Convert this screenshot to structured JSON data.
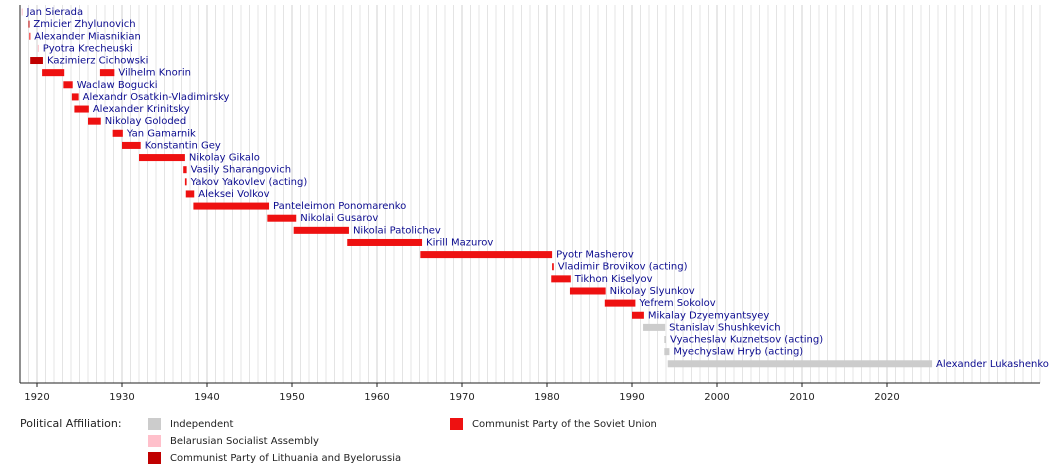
{
  "chart_data": {
    "type": "timeline",
    "xlim": [
      1918,
      2038
    ],
    "xticks": [
      1920,
      1930,
      1940,
      1950,
      1960,
      1970,
      1980,
      1990,
      2000,
      2010,
      2020
    ],
    "grid": true,
    "rows": [
      {
        "label": "Jan Sierada",
        "bars": [
          {
            "start": 1918.2,
            "end": 1918.3,
            "color": "#ffc0cb"
          }
        ]
      },
      {
        "label": "Zmicier Zhylunovich",
        "bars": [
          {
            "start": 1919.0,
            "end": 1919.1,
            "color": "#c00000"
          }
        ]
      },
      {
        "label": "Alexander Miasnikian",
        "bars": [
          {
            "start": 1919.1,
            "end": 1919.2,
            "color": "#ee1111"
          }
        ]
      },
      {
        "label": "Pyotra Krecheuski",
        "bars": [
          {
            "start": 1920.1,
            "end": 1920.2,
            "color": "#ffc0cb"
          }
        ]
      },
      {
        "label": "Kazimierz Cichowski",
        "bars": [
          {
            "start": 1919.2,
            "end": 1920.7,
            "color": "#c00000"
          }
        ]
      },
      {
        "label": "Vilhelm Knorin",
        "bars": [
          {
            "start": 1920.6,
            "end": 1923.2,
            "color": "#ee1111"
          },
          {
            "start": 1927.4,
            "end": 1929.1,
            "color": "#ee1111"
          }
        ]
      },
      {
        "label": "Waclaw Bogucki",
        "bars": [
          {
            "start": 1923.1,
            "end": 1924.2,
            "color": "#ee1111"
          }
        ]
      },
      {
        "label": "Alexandr Osatkin-Vladimirsky",
        "bars": [
          {
            "start": 1924.1,
            "end": 1924.9,
            "color": "#ee1111"
          }
        ]
      },
      {
        "label": "Alexander Krinitsky",
        "bars": [
          {
            "start": 1924.4,
            "end": 1926.1,
            "color": "#ee1111"
          }
        ]
      },
      {
        "label": "Nikolay Goloded",
        "bars": [
          {
            "start": 1926.0,
            "end": 1927.5,
            "color": "#ee1111"
          }
        ]
      },
      {
        "label": "Yan Gamarnik",
        "bars": [
          {
            "start": 1928.9,
            "end": 1930.1,
            "color": "#ee1111"
          }
        ]
      },
      {
        "label": "Konstantin Gey",
        "bars": [
          {
            "start": 1930.0,
            "end": 1932.2,
            "color": "#ee1111"
          }
        ]
      },
      {
        "label": "Nikolay Gikalo",
        "bars": [
          {
            "start": 1932.0,
            "end": 1937.4,
            "color": "#ee1111"
          }
        ]
      },
      {
        "label": "Vasily Sharangovich",
        "bars": [
          {
            "start": 1937.2,
            "end": 1937.6,
            "color": "#ee1111"
          }
        ]
      },
      {
        "label": "Yakov Yakovlev (acting)",
        "bars": [
          {
            "start": 1937.4,
            "end": 1937.6,
            "color": "#ee1111"
          }
        ]
      },
      {
        "label": "Aleksei Volkov",
        "bars": [
          {
            "start": 1937.5,
            "end": 1938.5,
            "color": "#ee1111"
          }
        ]
      },
      {
        "label": "Panteleimon Ponomarenko",
        "bars": [
          {
            "start": 1938.4,
            "end": 1947.3,
            "color": "#ee1111"
          }
        ]
      },
      {
        "label": "Nikolai Gusarov",
        "bars": [
          {
            "start": 1947.1,
            "end": 1950.5,
            "color": "#ee1111"
          }
        ]
      },
      {
        "label": "Nikolai Patolichev",
        "bars": [
          {
            "start": 1950.2,
            "end": 1956.7,
            "color": "#ee1111"
          }
        ]
      },
      {
        "label": "Kirill Mazurov",
        "bars": [
          {
            "start": 1956.5,
            "end": 1965.3,
            "color": "#ee1111"
          }
        ]
      },
      {
        "label": "Pyotr Masherov",
        "bars": [
          {
            "start": 1965.1,
            "end": 1980.6,
            "color": "#ee1111"
          }
        ]
      },
      {
        "label": "Vladimir Brovikov (acting)",
        "bars": [
          {
            "start": 1980.6,
            "end": 1980.8,
            "color": "#ee1111"
          }
        ]
      },
      {
        "label": "Tikhon Kiselyov",
        "bars": [
          {
            "start": 1980.5,
            "end": 1982.8,
            "color": "#ee1111"
          }
        ]
      },
      {
        "label": "Nikolay Slyunkov",
        "bars": [
          {
            "start": 1982.7,
            "end": 1986.9,
            "color": "#ee1111"
          }
        ]
      },
      {
        "label": "Yefrem Sokolov",
        "bars": [
          {
            "start": 1986.8,
            "end": 1990.4,
            "color": "#ee1111"
          }
        ]
      },
      {
        "label": "Mikalay Dzyemyantsyey",
        "bars": [
          {
            "start": 1990.0,
            "end": 1991.4,
            "color": "#ee1111"
          }
        ]
      },
      {
        "label": "Stanislav Shushkevich",
        "bars": [
          {
            "start": 1991.3,
            "end": 1993.9,
            "color": "#cccccc"
          }
        ]
      },
      {
        "label": "Vyacheslav Kuznetsov (acting)",
        "bars": [
          {
            "start": 1993.8,
            "end": 1994.0,
            "color": "#cccccc"
          }
        ]
      },
      {
        "label": "Myechyslaw Hryb (acting)",
        "bars": [
          {
            "start": 1993.8,
            "end": 1994.4,
            "color": "#cccccc"
          }
        ]
      },
      {
        "label": "Alexander Lukashenko",
        "bars": [
          {
            "start": 1994.2,
            "end": 2025.3,
            "color": "#cccccc"
          }
        ]
      }
    ],
    "legend": {
      "title": "Political Affiliation:",
      "items": [
        {
          "name": "Independent",
          "color": "#cccccc"
        },
        {
          "name": "Belarusian Socialist Assembly",
          "color": "#ffc0cb"
        },
        {
          "name": "Communist Party of Lithuania and Byelorussia",
          "color": "#c00000"
        },
        {
          "name": "Communist Party of the Soviet Union",
          "color": "#ee1111"
        }
      ]
    }
  }
}
